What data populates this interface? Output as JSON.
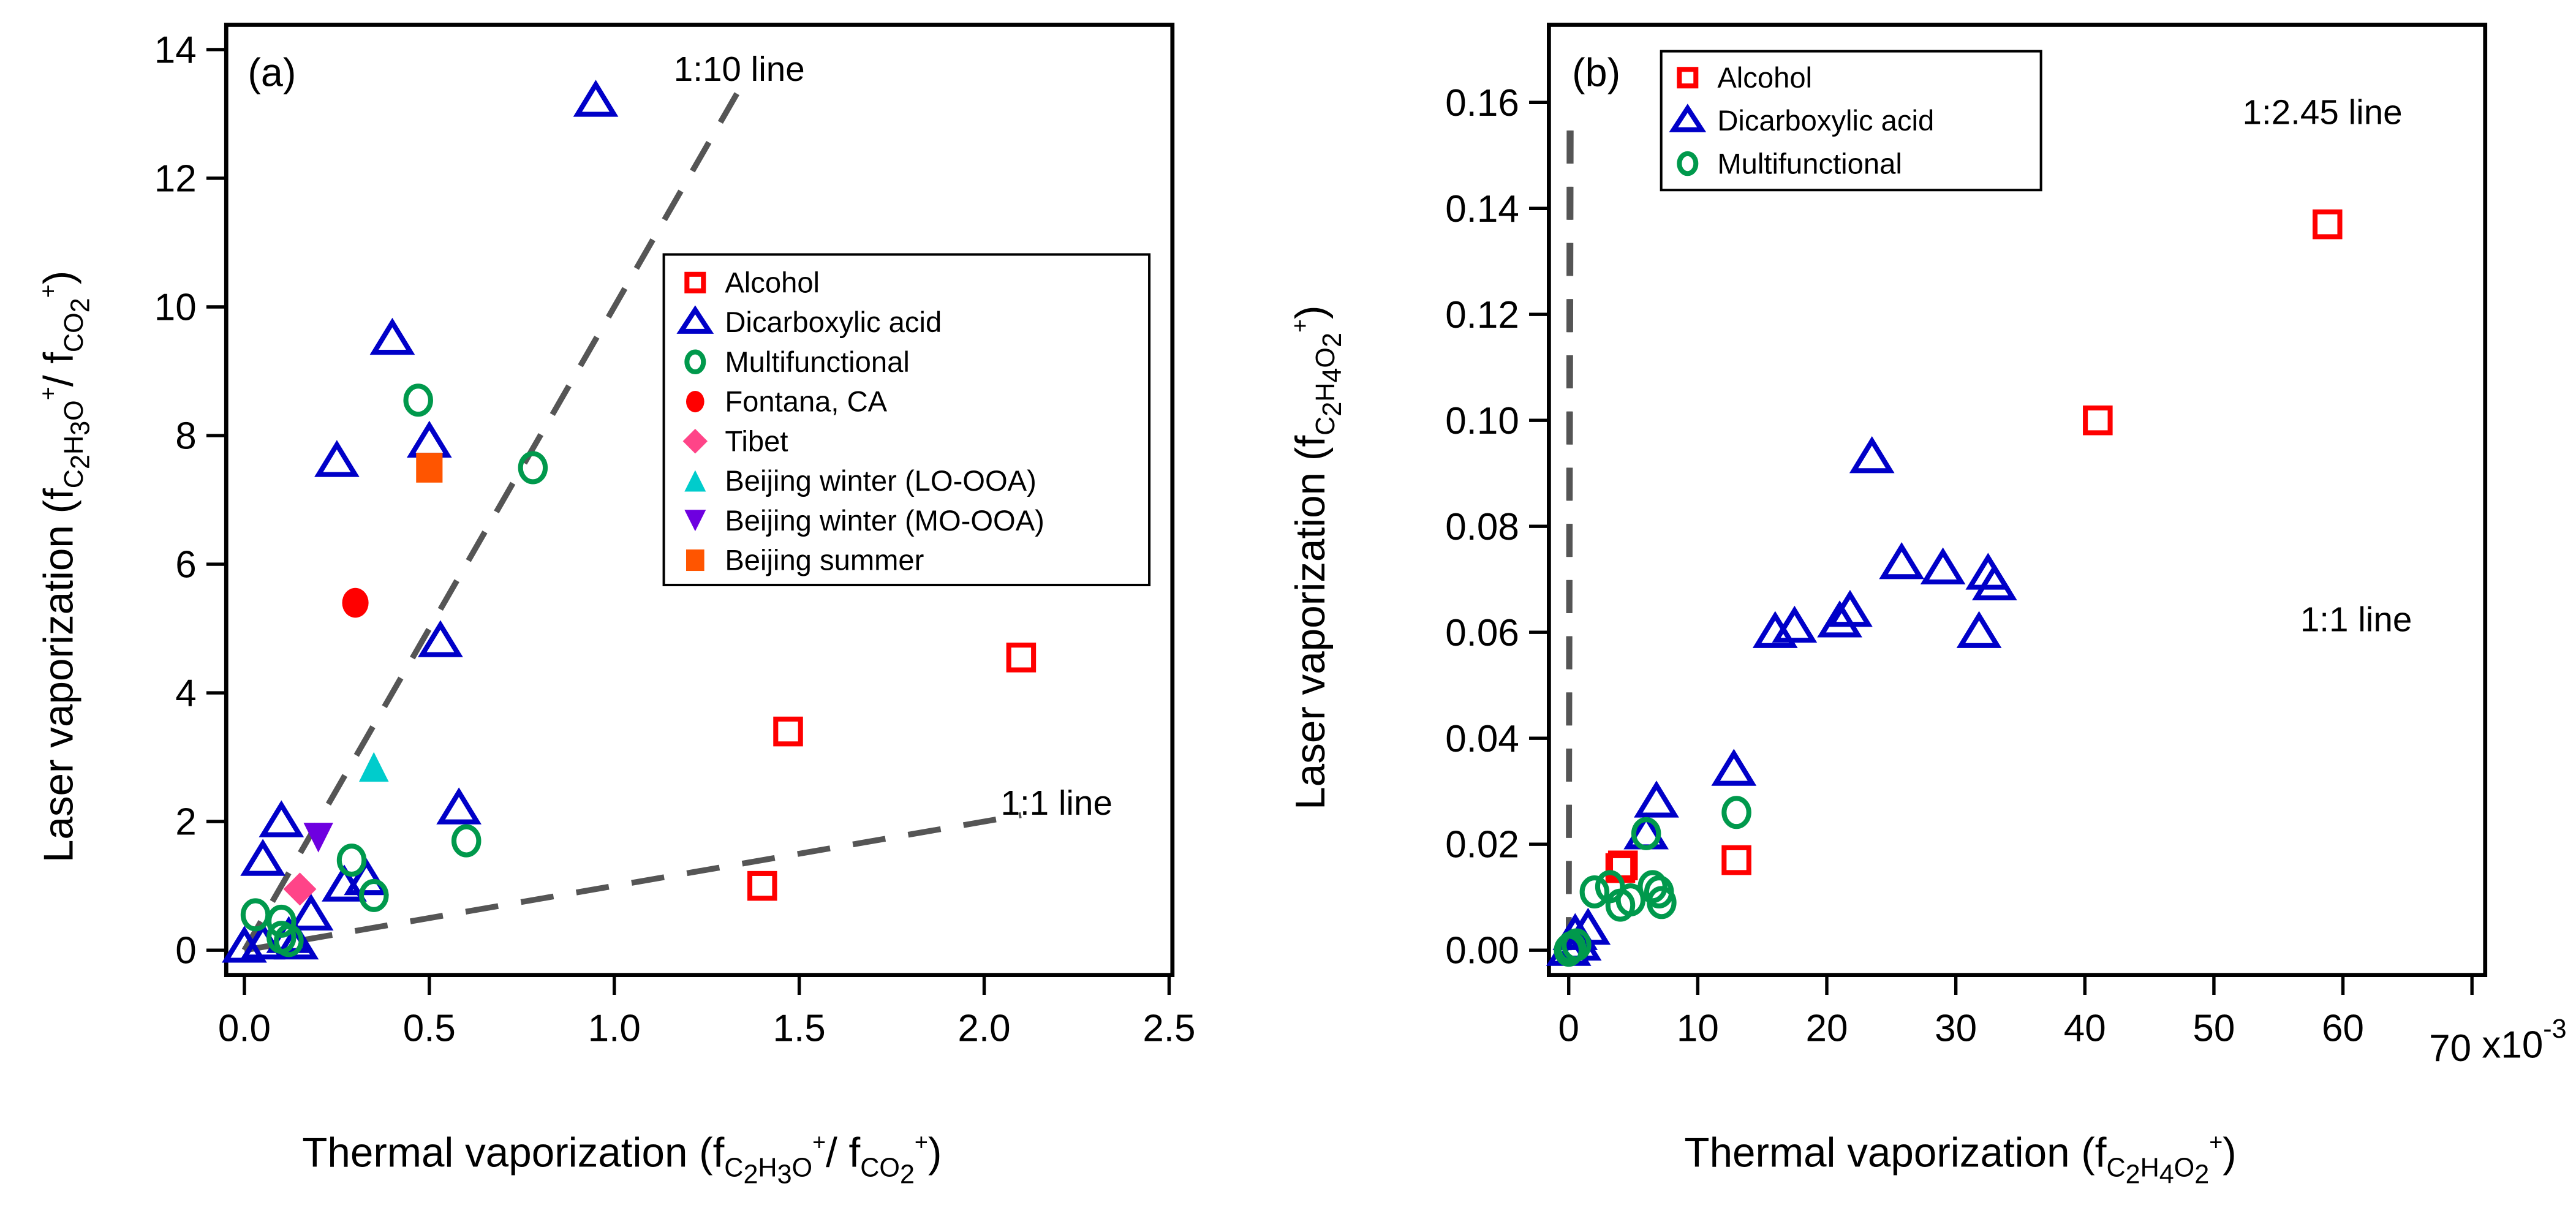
{
  "chart_data": [
    {
      "panel": "(a)",
      "type": "scatter",
      "xlabel": "Thermal vaporization (fC2H3O+/ fCO2+)",
      "xlabel_parts": {
        "main": "Thermal vaporization (f",
        "sub1": "C",
        "sub1n": "2",
        "mid1": "H",
        "sub2n": "3",
        "mid2": "O",
        "sup1": "+",
        "mid3": "/ f",
        "sub3": "CO",
        "sub3n": "2",
        "sup2": "+",
        "end": ")"
      },
      "ylabel": "Laser vaporization (fC2H3O+/ fCO2+)",
      "ylabel_parts": {
        "main": "Laser vaporization (f",
        "sub1": "C",
        "sub1n": "2",
        "mid1": "H",
        "sub2n": "3",
        "mid2": "O",
        "sup1": "+",
        "mid3": "/ f",
        "sub3": "CO",
        "sub3n": "2",
        "sup2": "+",
        "end": ")"
      },
      "xlim": [
        -0.05,
        2.55
      ],
      "ylim": [
        -0.35,
        14.3
      ],
      "xticks": [
        0.0,
        0.5,
        1.0,
        1.5,
        2.0,
        2.5
      ],
      "xtick_labels": [
        "0.0",
        "0.5",
        "1.0",
        "1.5",
        "2.0",
        "2.5"
      ],
      "yticks": [
        0,
        2,
        4,
        6,
        8,
        10,
        12,
        14
      ],
      "ytick_labels": [
        "0",
        "2",
        "4",
        "6",
        "8",
        "10",
        "12",
        "14"
      ],
      "grid": false,
      "legend_position": "upper-right-inside",
      "reference_lines": [
        {
          "label": "1:10 line",
          "slope": 10,
          "x_range": [
            0.0,
            1.35
          ]
        },
        {
          "label": "1:1 line",
          "slope": 1,
          "x_range": [
            0.0,
            2.1
          ]
        }
      ],
      "series": [
        {
          "name": "Alcohol",
          "marker": "open-square",
          "color": "#ff0000",
          "points": [
            [
              2.1,
              4.55
            ],
            [
              1.47,
              3.4
            ],
            [
              1.4,
              1.0
            ]
          ]
        },
        {
          "name": "Dicarboxylic acid",
          "marker": "open-triangle",
          "color": "#0000c8",
          "points": [
            [
              0.95,
              13.2
            ],
            [
              0.4,
              9.5
            ],
            [
              0.5,
              7.9
            ],
            [
              0.25,
              7.6
            ],
            [
              0.53,
              4.8
            ],
            [
              0.58,
              2.2
            ],
            [
              0.1,
              2.0
            ],
            [
              0.05,
              1.4
            ],
            [
              0.27,
              1.0
            ],
            [
              0.33,
              1.1
            ],
            [
              0.18,
              0.55
            ],
            [
              0.12,
              0.2
            ],
            [
              0.0,
              0.05
            ],
            [
              0.14,
              0.1
            ],
            [
              0.05,
              0.1
            ]
          ]
        },
        {
          "name": "Multifunctional",
          "marker": "open-circle",
          "color": "#00994c",
          "points": [
            [
              0.47,
              8.55
            ],
            [
              0.78,
              7.5
            ],
            [
              0.6,
              1.7
            ],
            [
              0.29,
              1.4
            ],
            [
              0.35,
              0.85
            ],
            [
              0.03,
              0.55
            ],
            [
              0.1,
              0.45
            ],
            [
              0.1,
              0.2
            ],
            [
              0.12,
              0.15
            ]
          ]
        },
        {
          "name": "Fontana, CA",
          "marker": "filled-circle",
          "color": "#ff0000",
          "points": [
            [
              0.3,
              5.4
            ]
          ]
        },
        {
          "name": "Tibet",
          "marker": "filled-diamond",
          "color": "#ff4488",
          "points": [
            [
              0.15,
              0.95
            ]
          ]
        },
        {
          "name": "Beijing winter (LO-OOA)",
          "marker": "filled-triangle",
          "color": "#00cccc",
          "points": [
            [
              0.35,
              2.85
            ]
          ]
        },
        {
          "name": "Beijing winter (MO-OOA)",
          "marker": "filled-triangle-down",
          "color": "#6e00e0",
          "points": [
            [
              0.2,
              1.75
            ]
          ]
        },
        {
          "name": "Beijing summer",
          "marker": "filled-square",
          "color": "#ff5500",
          "points": [
            [
              0.5,
              7.5
            ]
          ]
        }
      ]
    },
    {
      "panel": "(b)",
      "type": "scatter",
      "xlabel": "Thermal vaporization (fC2H4O2+)",
      "xlabel_parts": {
        "main": "Thermal vaporization (f",
        "sub": "C",
        "n1": "2",
        "h": "H",
        "n2": "4",
        "o": "O",
        "n3": "2",
        "sup": "+",
        "end": ")"
      },
      "ylabel": "Laser vaporization (fC2H4O2+)",
      "ylabel_parts": {
        "main": "Laser vaporization (f",
        "sub": "C",
        "n1": "2",
        "h": "H",
        "n2": "4",
        "o": "O",
        "n3": "2",
        "sup": "+",
        "end": ")"
      },
      "x_multiplier_label": "x10",
      "x_multiplier_exp": "-3",
      "xlim": [
        -1,
        70
      ],
      "ylim": [
        -0.004,
        0.174
      ],
      "xticks": [
        0,
        10,
        20,
        30,
        40,
        50,
        60,
        70
      ],
      "xtick_labels": [
        "0",
        "10",
        "20",
        "30",
        "40",
        "50",
        "60",
        "70"
      ],
      "yticks": [
        0.0,
        0.02,
        0.04,
        0.06,
        0.08,
        0.1,
        0.12,
        0.14,
        0.16
      ],
      "ytick_labels": [
        "0.00",
        "0.02",
        "0.04",
        "0.06",
        "0.08",
        "0.10",
        "0.12",
        "0.14",
        "0.16"
      ],
      "x_units": "1e-3",
      "grid": false,
      "legend_position": "upper-left-inside",
      "reference_lines": [
        {
          "label": "1:2.45 line",
          "slope": 2.45,
          "x_range": [
            0,
            68
          ]
        },
        {
          "label": "1:1 line",
          "slope": 1,
          "x_range": [
            0,
            70
          ]
        }
      ],
      "series": [
        {
          "name": "Alcohol",
          "marker": "open-square",
          "color": "#ff0000",
          "points": [
            [
              58.8,
              0.137
            ],
            [
              41.0,
              0.1
            ],
            [
              4.2,
              0.016
            ],
            [
              13.0,
              0.017
            ],
            [
              4.0,
              0.0155
            ]
          ]
        },
        {
          "name": "Dicarboxylic acid",
          "marker": "open-triangle",
          "color": "#0000c8",
          "points": [
            [
              23.5,
              0.093
            ],
            [
              25.8,
              0.073
            ],
            [
              29.0,
              0.072
            ],
            [
              32.5,
              0.071
            ],
            [
              33.0,
              0.069
            ],
            [
              31.8,
              0.06
            ],
            [
              16.0,
              0.06
            ],
            [
              17.5,
              0.061
            ],
            [
              21.0,
              0.062
            ],
            [
              21.8,
              0.064
            ],
            [
              12.8,
              0.034
            ],
            [
              6.8,
              0.028
            ],
            [
              6.0,
              0.022
            ],
            [
              0.5,
              0.003
            ],
            [
              1.5,
              0.004
            ],
            [
              0.0,
              0.0
            ],
            [
              0.8,
              0.001
            ]
          ]
        },
        {
          "name": "Multifunctional",
          "marker": "open-circle",
          "color": "#00994c",
          "points": [
            [
              13.0,
              0.026
            ],
            [
              6.0,
              0.022
            ],
            [
              2.0,
              0.011
            ],
            [
              3.2,
              0.012
            ],
            [
              4.8,
              0.0095
            ],
            [
              6.5,
              0.012
            ],
            [
              7.0,
              0.011
            ],
            [
              7.2,
              0.009
            ],
            [
              4.0,
              0.0085
            ],
            [
              0.2,
              0.0005
            ],
            [
              0.0,
              0.0
            ],
            [
              0.6,
              0.001
            ]
          ]
        }
      ]
    }
  ]
}
